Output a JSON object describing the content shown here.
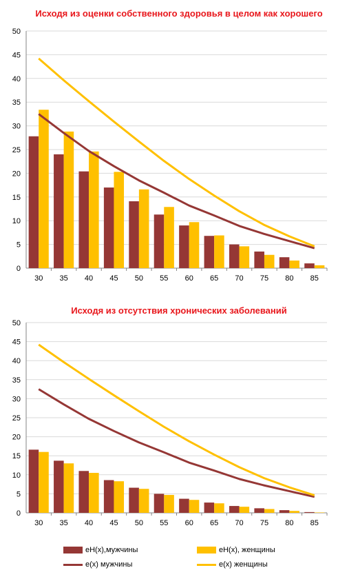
{
  "colors": {
    "men": "#953735",
    "women": "#FFC000",
    "title": "#E8161B",
    "grid": "#D9D9D9",
    "axis": "#868686"
  },
  "legend": {
    "bar_men": "eH(x),мужчины",
    "bar_women": "eH(x), женщины",
    "line_men": "e(x) мужчины",
    "line_women": "e(x) женщины"
  },
  "chart_data": [
    {
      "type": "bar",
      "title": "Исходя  из оценки собственного  здоровья  в целом как хорошего",
      "categories": [
        "30",
        "35",
        "40",
        "45",
        "50",
        "55",
        "60",
        "65",
        "70",
        "75",
        "80",
        "85"
      ],
      "ylim": [
        0,
        50
      ],
      "yticks": [
        "0",
        "5",
        "10",
        "15",
        "20",
        "25",
        "30",
        "35",
        "40",
        "45",
        "50"
      ],
      "grid": true,
      "series": [
        {
          "name": "eH(x),мужчины",
          "kind": "bar",
          "values": [
            27.8,
            24.0,
            20.4,
            17.0,
            14.1,
            11.3,
            9.0,
            6.8,
            5.0,
            3.5,
            2.3,
            1.0
          ]
        },
        {
          "name": "eH(x), женщины",
          "kind": "bar",
          "values": [
            33.4,
            28.8,
            24.6,
            20.3,
            16.6,
            12.9,
            9.7,
            6.9,
            4.6,
            2.8,
            1.6,
            0.6
          ]
        },
        {
          "name": "e(x) мужчины",
          "kind": "line",
          "values": [
            32.5,
            28.5,
            24.7,
            21.5,
            18.5,
            15.9,
            13.2,
            11.1,
            8.9,
            7.2,
            5.7,
            4.2
          ]
        },
        {
          "name": "e(x) женщины",
          "kind": "line",
          "values": [
            44.2,
            39.6,
            35.2,
            30.9,
            26.7,
            22.6,
            18.8,
            15.3,
            12.0,
            9.1,
            6.7,
            4.6
          ]
        }
      ]
    },
    {
      "type": "bar",
      "title": "Исходя  из отсутствия  хронических заболеваний",
      "categories": [
        "30",
        "35",
        "40",
        "45",
        "50",
        "55",
        "60",
        "65",
        "70",
        "75",
        "80",
        "85"
      ],
      "ylim": [
        0,
        50
      ],
      "yticks": [
        "0",
        "5",
        "10",
        "15",
        "20",
        "25",
        "30",
        "35",
        "40",
        "45",
        "50"
      ],
      "grid": true,
      "series": [
        {
          "name": "eH(x),мужчины",
          "kind": "bar",
          "values": [
            16.6,
            13.7,
            11.0,
            8.6,
            6.6,
            5.0,
            3.7,
            2.7,
            1.8,
            1.2,
            0.7,
            0.2
          ]
        },
        {
          "name": "eH(x), женщины",
          "kind": "bar",
          "values": [
            16.0,
            13.0,
            10.5,
            8.3,
            6.3,
            4.7,
            3.4,
            2.5,
            1.6,
            1.0,
            0.5,
            0.1
          ]
        },
        {
          "name": "e(x) мужчины",
          "kind": "line",
          "values": [
            32.5,
            28.5,
            24.7,
            21.5,
            18.5,
            15.9,
            13.2,
            11.1,
            8.9,
            7.2,
            5.7,
            4.2
          ]
        },
        {
          "name": "e(x) женщины",
          "kind": "line",
          "values": [
            44.2,
            39.6,
            35.2,
            30.9,
            26.7,
            22.6,
            18.8,
            15.3,
            12.0,
            9.1,
            6.7,
            4.6
          ]
        }
      ]
    }
  ]
}
